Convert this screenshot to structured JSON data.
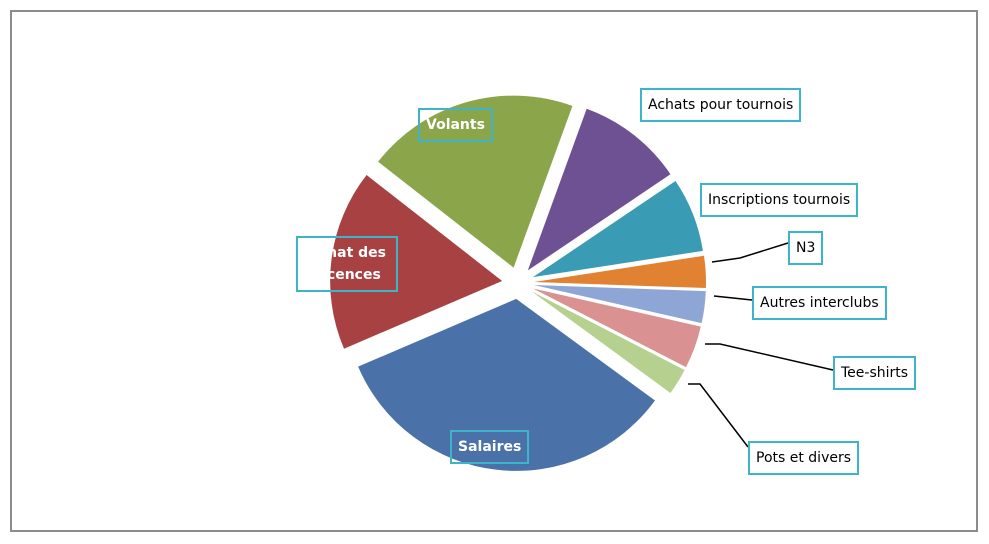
{
  "chart_data": {
    "type": "pie",
    "categories": [
      "Volants",
      "Achats pour tournois",
      "Inscriptions tournois",
      "N3",
      "Autres interclubs",
      "Tee-shirts",
      "Pots et divers",
      "Salaires",
      "Achat des Licences"
    ],
    "values": [
      20,
      10,
      7,
      3,
      3,
      4,
      2.5,
      33.5,
      17
    ],
    "colors": [
      "#8ba54b",
      "#6d5193",
      "#3a9bb4",
      "#e08232",
      "#8da6d6",
      "#d99191",
      "#b6d18f",
      "#4a72a8",
      "#a84141"
    ]
  }
}
